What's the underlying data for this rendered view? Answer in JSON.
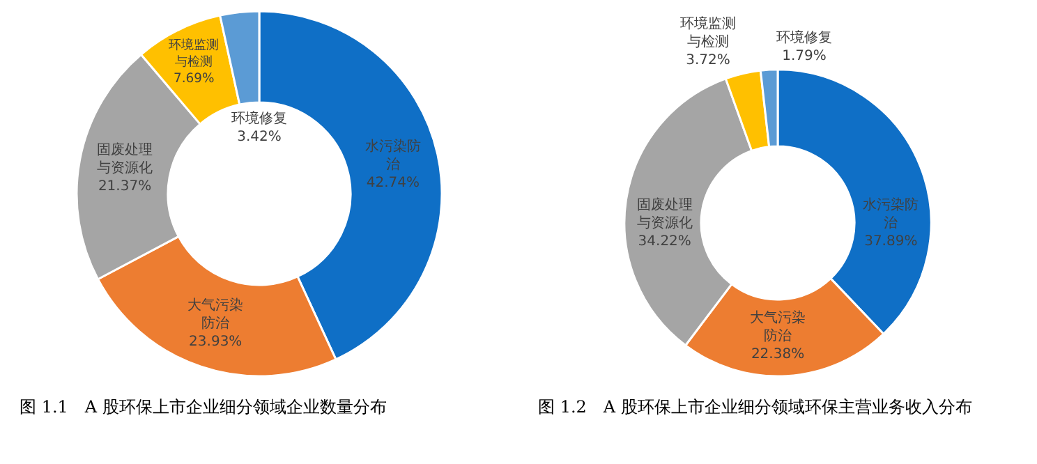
{
  "chart_data": [
    {
      "type": "donut",
      "title": "图 1.1　A 股环保上市企业细分领域企业数量分布",
      "categories": [
        "水污染防治",
        "大气污染防治",
        "固废处理与资源化",
        "环境监测与检测",
        "环境修复"
      ],
      "values": [
        42.74,
        23.93,
        21.37,
        7.69,
        3.42
      ],
      "value_labels": [
        "42.74%",
        "23.93%",
        "21.37%",
        "7.69%",
        "3.42%"
      ],
      "colors": [
        "#0f6fc6",
        "#ed7d31",
        "#a5a5a5",
        "#ffc000",
        "#5b9bd5"
      ],
      "data_labels": true
    },
    {
      "type": "donut",
      "title": "图 1.2　A 股环保上市企业细分领域环保主营业务收入分布",
      "categories": [
        "水污染防治",
        "大气污染防治",
        "固废处理与资源化",
        "环境监测与检测",
        "环境修复"
      ],
      "values": [
        37.89,
        22.38,
        34.22,
        3.72,
        1.79
      ],
      "value_labels": [
        "37.89%",
        "22.38%",
        "34.22%",
        "3.72%",
        "1.79%"
      ],
      "colors": [
        "#0f6fc6",
        "#ed7d31",
        "#a5a5a5",
        "#ffc000",
        "#5b9bd5"
      ],
      "data_labels": true
    }
  ]
}
